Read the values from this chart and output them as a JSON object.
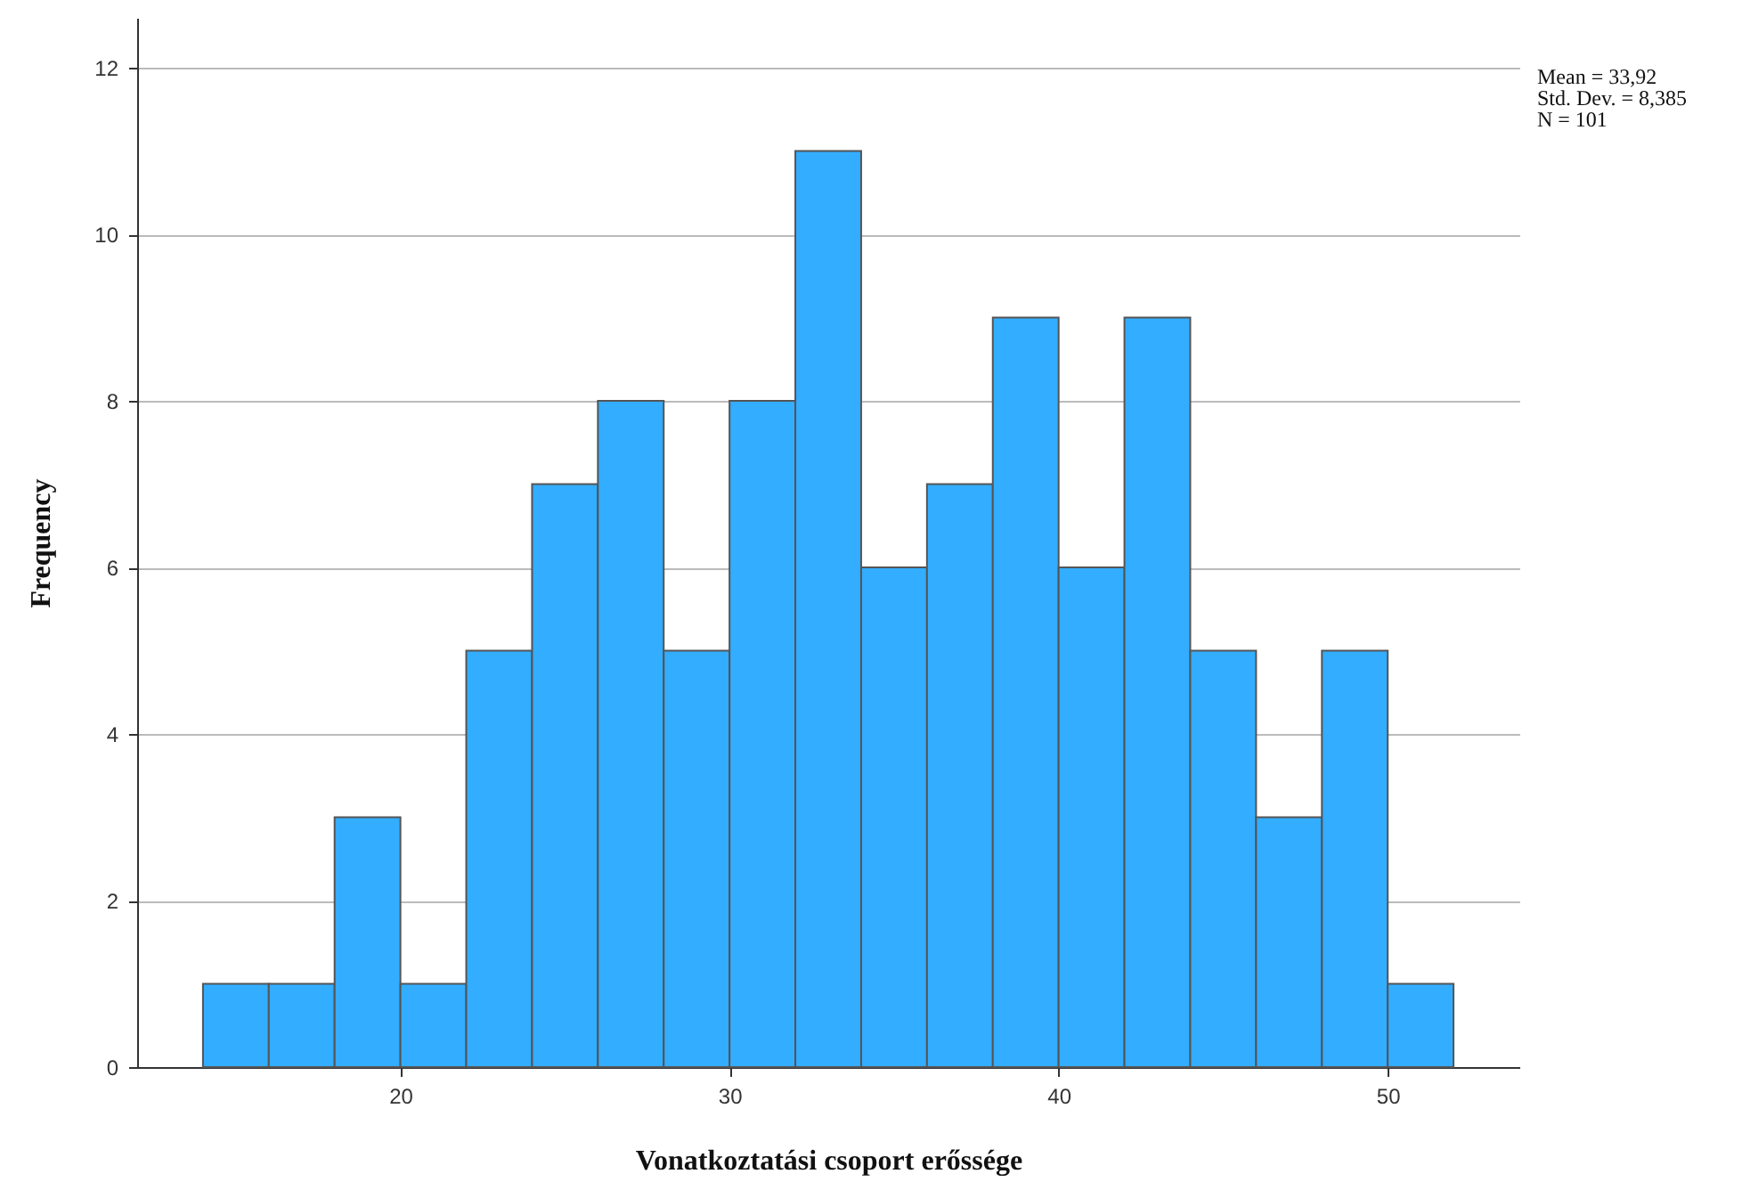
{
  "chart_data": {
    "type": "histogram",
    "xlabel": "Vonatkoztatási csoport erőssége",
    "ylabel": "Frequency",
    "bins": [
      14,
      16,
      18,
      20,
      22,
      24,
      26,
      28,
      30,
      32,
      34,
      36,
      38,
      40,
      42,
      44,
      46,
      48,
      50,
      52
    ],
    "values": [
      1,
      1,
      3,
      1,
      5,
      7,
      8,
      5,
      8,
      11,
      6,
      7,
      9,
      6,
      9,
      5,
      3,
      5,
      1
    ],
    "color": "#33adff",
    "xlim": [
      12,
      54
    ],
    "xticks": [
      20,
      30,
      40,
      50
    ],
    "ylim": [
      0,
      12.6
    ],
    "yticks": [
      0,
      2,
      4,
      6,
      8,
      10,
      12
    ],
    "grid": "y",
    "annotations": [
      "Mean = 33,92",
      "Std. Dev. = 8,385",
      "N = 101"
    ]
  }
}
